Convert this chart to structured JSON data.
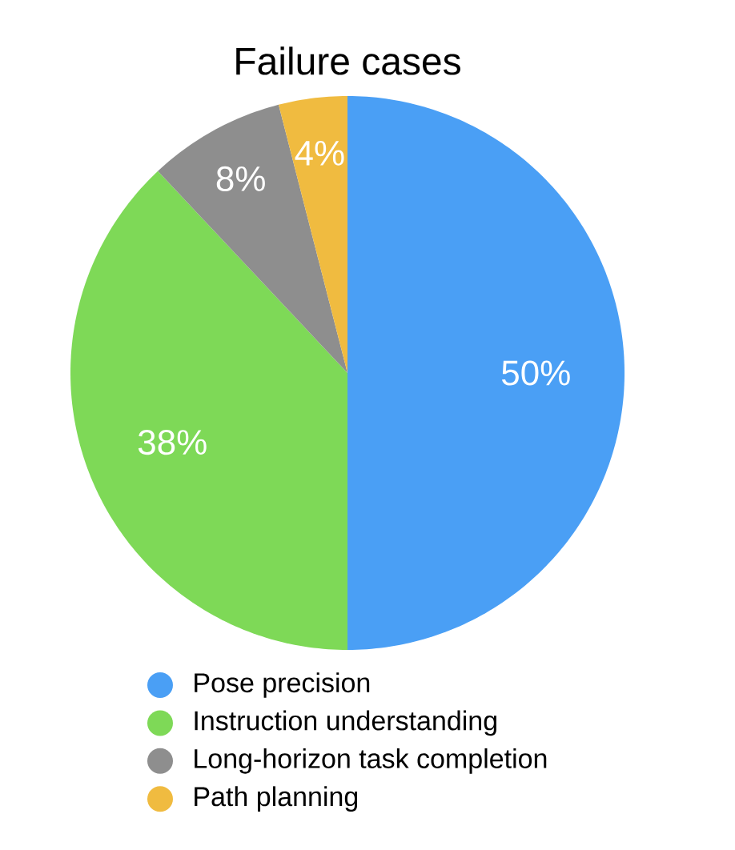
{
  "chart_data": {
    "type": "pie",
    "title": "Failure cases",
    "categories": [
      "Pose precision",
      "Instruction understanding",
      "Long-horizon task completion",
      "Path planning"
    ],
    "values": [
      50,
      38,
      8,
      4
    ],
    "value_labels": [
      "50%",
      "38%",
      "8%",
      "4%"
    ],
    "colors": [
      "#4a9ff5",
      "#7ed957",
      "#8e8e8e",
      "#f0bb40"
    ],
    "legend": "bottom"
  }
}
